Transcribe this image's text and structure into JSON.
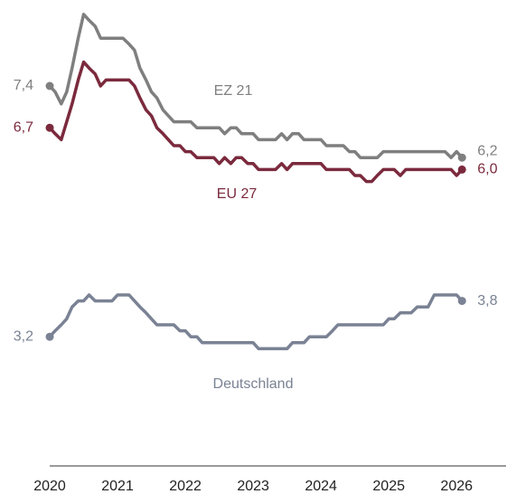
{
  "chart_data": {
    "type": "line",
    "x": [
      2020,
      2020.08,
      2020.17,
      2020.25,
      2020.33,
      2020.42,
      2020.5,
      2020.58,
      2020.67,
      2020.75,
      2020.83,
      2020.92,
      2021,
      2021.08,
      2021.17,
      2021.25,
      2021.33,
      2021.42,
      2021.5,
      2021.58,
      2021.67,
      2021.75,
      2021.83,
      2021.92,
      2022,
      2022.08,
      2022.17,
      2022.25,
      2022.33,
      2022.42,
      2022.5,
      2022.58,
      2022.67,
      2022.75,
      2022.83,
      2022.92,
      2023,
      2023.08,
      2023.17,
      2023.25,
      2023.33,
      2023.42,
      2023.5,
      2023.58,
      2023.67,
      2023.75,
      2023.83,
      2023.92,
      2024,
      2024.08,
      2024.17,
      2024.25,
      2024.33,
      2024.42,
      2024.5,
      2024.58,
      2024.67,
      2024.75,
      2024.83,
      2024.92,
      2025,
      2025.08,
      2025.17,
      2025.25,
      2025.33,
      2025.42,
      2025.5,
      2025.58,
      2025.67,
      2025.75,
      2025.83,
      2025.92,
      2026,
      2026.08
    ],
    "xlim": [
      2019.3,
      2026.73
    ],
    "xticks": [
      2020,
      2021,
      2022,
      2023,
      2024,
      2025,
      2026
    ],
    "ylim": [
      1.0,
      8.7
    ],
    "series": [
      {
        "name": "EZ 21",
        "color": "#7f7f7f",
        "values": [
          7.4,
          7.3,
          7.1,
          7.3,
          7.7,
          8.2,
          8.6,
          8.5,
          8.4,
          8.2,
          8.2,
          8.2,
          8.2,
          8.2,
          8.1,
          8.0,
          7.7,
          7.5,
          7.3,
          7.2,
          7.0,
          6.9,
          6.8,
          6.8,
          6.8,
          6.8,
          6.7,
          6.7,
          6.7,
          6.7,
          6.7,
          6.6,
          6.7,
          6.7,
          6.6,
          6.6,
          6.6,
          6.5,
          6.5,
          6.5,
          6.5,
          6.6,
          6.5,
          6.6,
          6.6,
          6.5,
          6.5,
          6.5,
          6.5,
          6.4,
          6.4,
          6.4,
          6.4,
          6.3,
          6.3,
          6.2,
          6.2,
          6.2,
          6.2,
          6.3,
          6.3,
          6.3,
          6.3,
          6.3,
          6.3,
          6.3,
          6.3,
          6.3,
          6.3,
          6.3,
          6.3,
          6.2,
          6.3,
          6.2
        ],
        "value_labels": [
          "7,4",
          null,
          null,
          null,
          null,
          null,
          null,
          null,
          null,
          null,
          null,
          null,
          null,
          null,
          null,
          null,
          null,
          null,
          null,
          null,
          null,
          null,
          null,
          null,
          null,
          null,
          null,
          null,
          null,
          null,
          null,
          null,
          null,
          null,
          null,
          null,
          null,
          null,
          null,
          null,
          null,
          null,
          null,
          null,
          null,
          null,
          null,
          null,
          null,
          null,
          null,
          null,
          null,
          null,
          null,
          null,
          null,
          null,
          null,
          null,
          null,
          null,
          null,
          null,
          null,
          null,
          null,
          null,
          null,
          null,
          null,
          null,
          null,
          "6,2"
        ]
      },
      {
        "name": "EU 27",
        "color": "#7b2a3d",
        "values": [
          6.7,
          6.6,
          6.5,
          6.8,
          7.1,
          7.5,
          7.8,
          7.7,
          7.6,
          7.4,
          7.5,
          7.5,
          7.5,
          7.5,
          7.5,
          7.4,
          7.2,
          7.0,
          6.9,
          6.7,
          6.6,
          6.5,
          6.4,
          6.4,
          6.3,
          6.3,
          6.2,
          6.2,
          6.2,
          6.2,
          6.1,
          6.2,
          6.1,
          6.2,
          6.2,
          6.1,
          6.1,
          6.0,
          6.0,
          6.0,
          6.0,
          6.1,
          6.0,
          6.1,
          6.1,
          6.1,
          6.1,
          6.1,
          6.1,
          6.0,
          6.0,
          6.0,
          6.0,
          6.0,
          5.9,
          5.9,
          5.8,
          5.8,
          5.9,
          6.0,
          6.0,
          6.0,
          5.9,
          6.0,
          6.0,
          6.0,
          6.0,
          6.0,
          6.0,
          6.0,
          6.0,
          6.0,
          5.9,
          6.0
        ],
        "value_labels": [
          "6,7",
          null,
          null,
          null,
          null,
          null,
          null,
          null,
          null,
          null,
          null,
          null,
          null,
          null,
          null,
          null,
          null,
          null,
          null,
          null,
          null,
          null,
          null,
          null,
          null,
          null,
          null,
          null,
          null,
          null,
          null,
          null,
          null,
          null,
          null,
          null,
          null,
          null,
          null,
          null,
          null,
          null,
          null,
          null,
          null,
          null,
          null,
          null,
          null,
          null,
          null,
          null,
          null,
          null,
          null,
          null,
          null,
          null,
          null,
          null,
          null,
          null,
          null,
          null,
          null,
          null,
          null,
          null,
          null,
          null,
          null,
          null,
          null,
          "6,0"
        ]
      },
      {
        "name": "Deutschland",
        "color": "#7a8294",
        "values": [
          3.2,
          3.3,
          3.4,
          3.5,
          3.7,
          3.8,
          3.8,
          3.9,
          3.8,
          3.8,
          3.8,
          3.8,
          3.9,
          3.9,
          3.9,
          3.8,
          3.7,
          3.6,
          3.5,
          3.4,
          3.4,
          3.4,
          3.4,
          3.3,
          3.3,
          3.2,
          3.2,
          3.1,
          3.1,
          3.1,
          3.1,
          3.1,
          3.1,
          3.1,
          3.1,
          3.1,
          3.1,
          3.0,
          3.0,
          3.0,
          3.0,
          3.0,
          3.0,
          3.1,
          3.1,
          3.1,
          3.2,
          3.2,
          3.2,
          3.2,
          3.3,
          3.4,
          3.4,
          3.4,
          3.4,
          3.4,
          3.4,
          3.4,
          3.4,
          3.4,
          3.5,
          3.5,
          3.6,
          3.6,
          3.6,
          3.7,
          3.7,
          3.7,
          3.9,
          3.9,
          3.9,
          3.9,
          3.9,
          3.8
        ],
        "value_labels": [
          "3,2",
          null,
          null,
          null,
          null,
          null,
          null,
          null,
          null,
          null,
          null,
          null,
          null,
          null,
          null,
          null,
          null,
          null,
          null,
          null,
          null,
          null,
          null,
          null,
          null,
          null,
          null,
          null,
          null,
          null,
          null,
          null,
          null,
          null,
          null,
          null,
          null,
          null,
          null,
          null,
          null,
          null,
          null,
          null,
          null,
          null,
          null,
          null,
          null,
          null,
          null,
          null,
          null,
          null,
          null,
          null,
          null,
          null,
          null,
          null,
          null,
          null,
          null,
          null,
          null,
          null,
          null,
          null,
          null,
          null,
          null,
          null,
          null,
          "3,8"
        ]
      }
    ]
  }
}
